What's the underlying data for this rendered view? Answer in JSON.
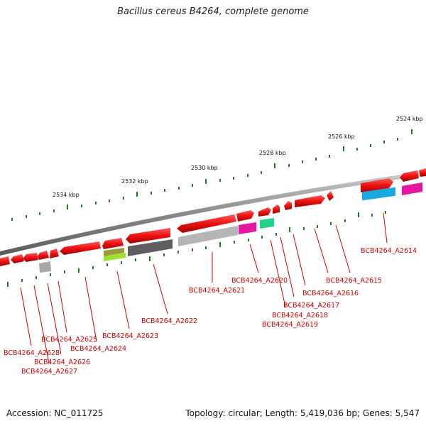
{
  "title": "Bacillus cereus B4264, complete genome",
  "footer": {
    "accession": "Accession: NC_011725",
    "summary": "Topology: circular; Length: 5,419,036 bp; Genes: 5,547"
  },
  "scale_labels": [
    "2524 kbp",
    "2526 kbp",
    "2528 kbp",
    "2530 kbp",
    "2532 kbp",
    "2534 kbp"
  ],
  "gene_labels": [
    "BCB4264_A2614",
    "BCB4264_A2615",
    "BCB4264_A2616",
    "BCB4264_A2617",
    "BCB4264_A2618",
    "BCB4264_A2619",
    "BCB4264_A2620",
    "BCB4264_A2621",
    "BCB4264_A2622",
    "BCB4264_A2623",
    "BCB4264_A2624",
    "BCB4264_A2625",
    "BCB4264_A2626",
    "BCB4264_A2627",
    "BCB4264_A2628"
  ],
  "colors": {
    "gene_red": "#ee1111",
    "leader_line": "#cc0000",
    "backbone": "#888888",
    "tick": "#1d7a1d"
  }
}
